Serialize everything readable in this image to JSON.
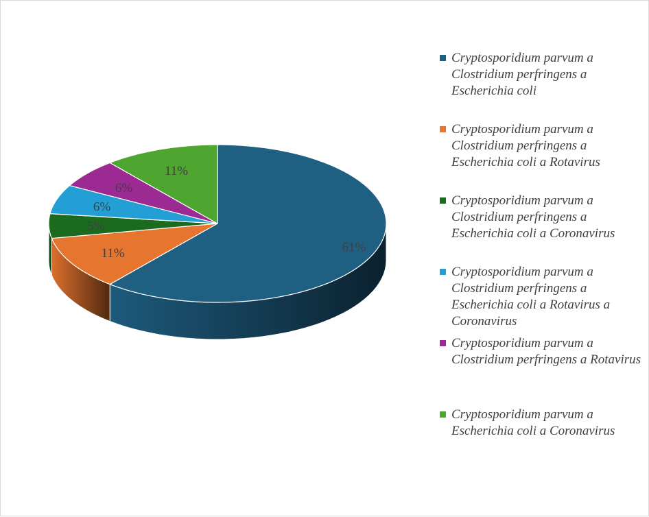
{
  "chart_data": {
    "type": "pie",
    "style": "3d",
    "legend_position": "right",
    "slices": [
      {
        "label": "Cryptosporidium parvum a Clostridium perfringens a Escherichia coli",
        "value": 61,
        "data_label": "61%",
        "color": "#1f5f82"
      },
      {
        "label": "Cryptosporidium parvum a Clostridium perfringens a Escherichia coli a Rotavirus",
        "value": 11,
        "data_label": "11%",
        "color": "#e6752f"
      },
      {
        "label": "Cryptosporidium parvum a Clostridium perfringens a Escherichia coli a Coronavirus",
        "value": 5,
        "data_label": "5%",
        "color": "#1b6a1e"
      },
      {
        "label": "Cryptosporidium parvum a Clostridium perfringens a Escherichia coli a Rotavirus a Coronavirus",
        "value": 6,
        "data_label": "6%",
        "color": "#239fd6"
      },
      {
        "label": "Cryptosporidium parvum a Clostridium perfringens a Rotavirus",
        "value": 6,
        "data_label": "6%",
        "color": "#9b2b93"
      },
      {
        "label": "Cryptosporidium parvum a Escherichia coli a Coronavirus",
        "value": 11,
        "data_label": "11%",
        "color": "#4ea52f"
      }
    ]
  }
}
